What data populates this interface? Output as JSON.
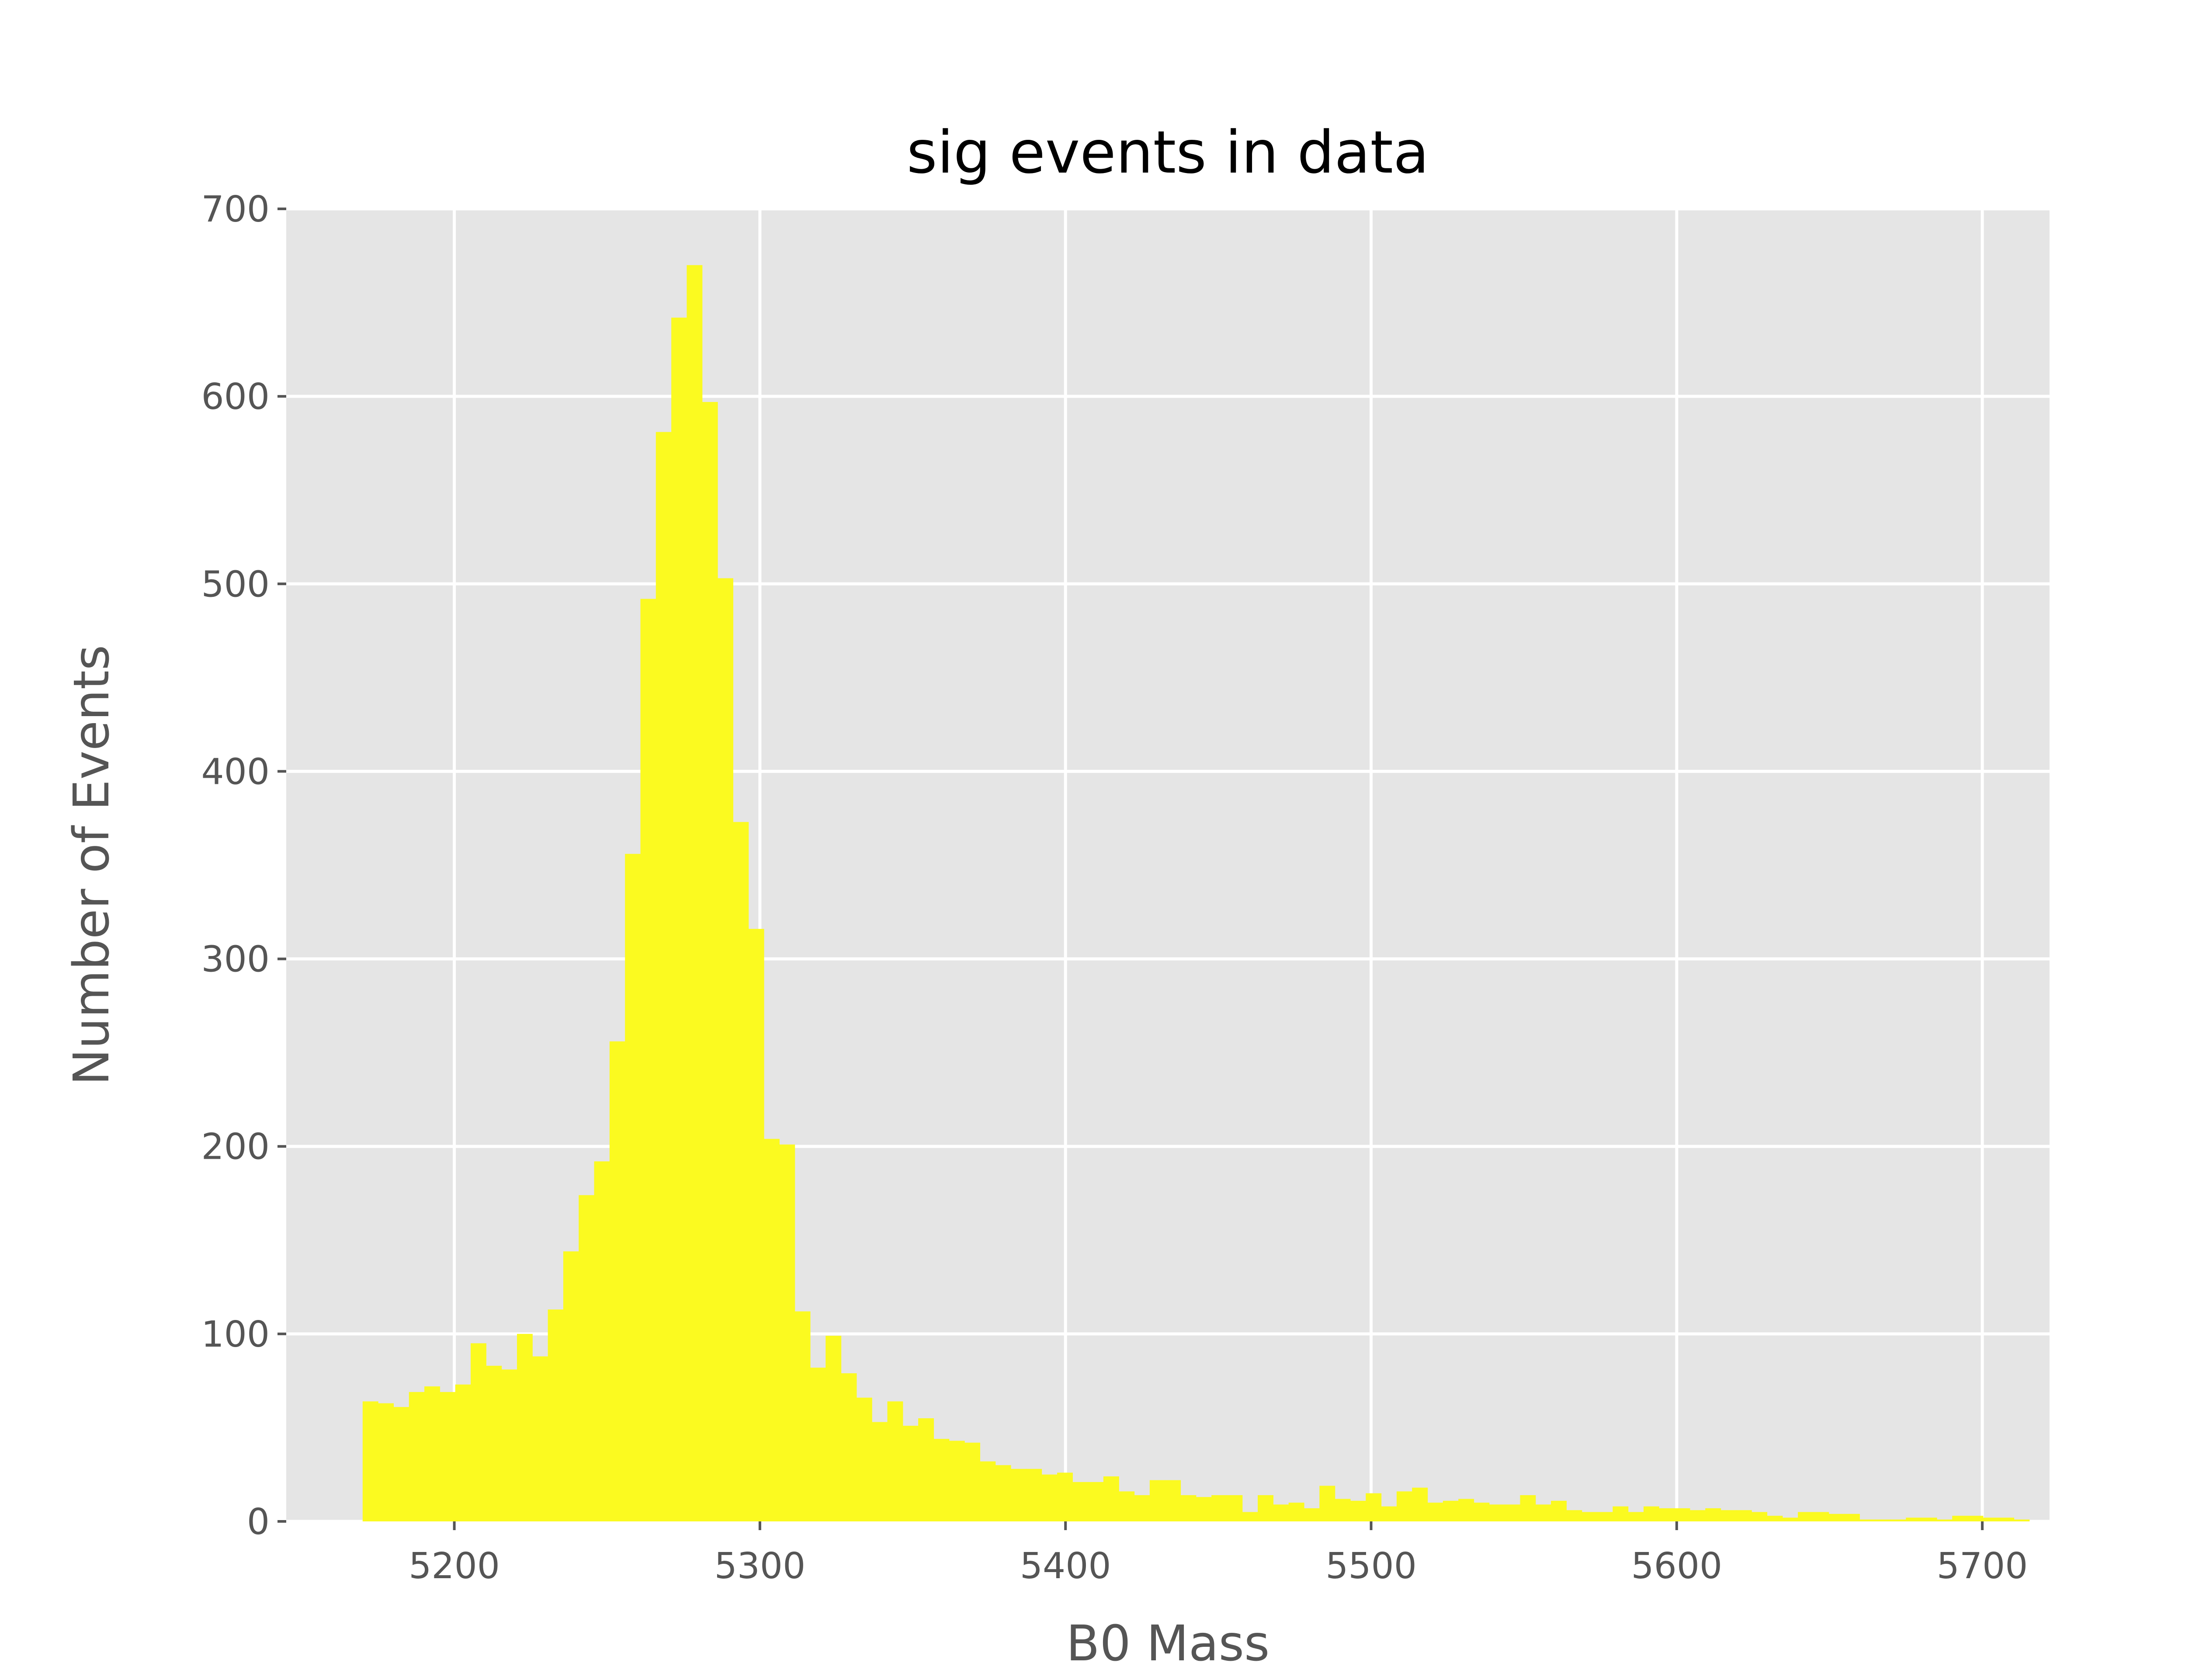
{
  "chart_data": {
    "type": "bar",
    "title": "sig events in data",
    "xlabel": "B0 Mass",
    "ylabel": "Number of Events",
    "xlim": [
      5145,
      5722
    ],
    "ylim": [
      0,
      700
    ],
    "x_ticks": [
      5200,
      5300,
      5400,
      5500,
      5600,
      5700
    ],
    "y_ticks": [
      0,
      100,
      200,
      300,
      400,
      500,
      600,
      700
    ],
    "grid": true,
    "legend": "none",
    "bin_start": 5170,
    "bin_width": 5.05,
    "bin_counts": [
      64,
      63,
      61,
      69,
      72,
      69,
      73,
      95,
      83,
      81,
      100,
      88,
      113,
      144,
      174,
      192,
      256,
      356,
      492,
      581,
      642,
      670,
      597,
      503,
      373,
      316,
      204,
      201,
      112,
      82,
      99,
      79,
      66,
      53,
      64,
      51,
      55,
      44,
      43,
      42,
      32,
      30,
      28,
      28,
      25,
      26,
      21,
      21,
      24,
      16,
      14,
      22,
      22,
      14,
      13,
      14,
      14,
      5,
      14,
      9,
      10,
      7,
      19,
      12,
      11,
      15,
      8,
      16,
      18,
      10,
      11,
      12,
      10,
      9,
      9,
      14,
      9,
      11,
      6,
      5,
      5,
      8,
      5,
      8,
      7,
      7,
      6,
      7,
      6,
      6,
      5,
      3,
      2,
      5,
      5,
      4,
      4,
      1,
      1,
      1,
      2,
      2,
      1,
      3,
      3,
      2,
      2,
      1
    ],
    "colors": {
      "bar": "#fbfa20",
      "plot_background": "#e5e5e5",
      "grid": "#ffffff",
      "tick_text": "#555555",
      "title_text": "#000000"
    }
  }
}
